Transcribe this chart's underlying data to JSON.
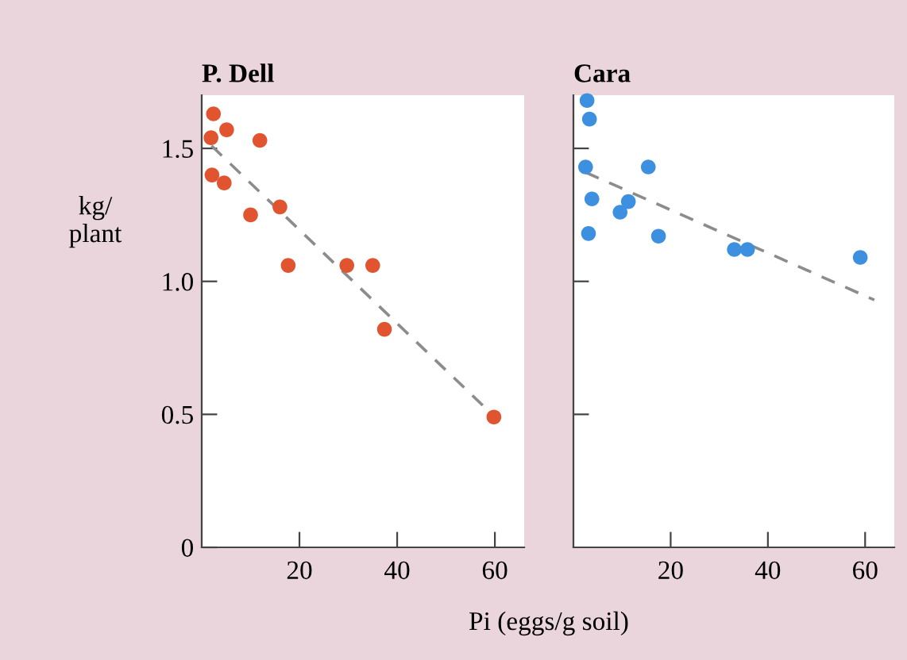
{
  "chart_data": [
    {
      "type": "scatter",
      "title": "P. Dell",
      "ylabel": "kg/\nplant",
      "xlabel": "Pi (eggs/g soil)",
      "xlim": [
        0,
        66
      ],
      "ylim": [
        0,
        1.7
      ],
      "xticks": [
        20,
        40,
        60
      ],
      "yticks": [
        0,
        {
          "value": 0.5,
          "label": "0.5"
        },
        {
          "value": 1.0,
          "label": "1.0"
        },
        {
          "value": 1.5,
          "label": "1.5"
        }
      ],
      "grid": false,
      "series": [
        {
          "marker": "circle",
          "color": "#e0552f",
          "x": [
            2.4,
            1.9,
            5.1,
            11.9,
            2.1,
            4.6,
            10,
            16,
            17.7,
            29.7,
            35,
            37.4,
            59.8
          ],
          "values": [
            1.63,
            1.54,
            1.57,
            1.53,
            1.4,
            1.37,
            1.25,
            1.28,
            1.06,
            1.06,
            1.06,
            0.82,
            0.49
          ]
        },
        {
          "type": "line",
          "line_style": "dashed",
          "color": "#8c8c8c",
          "x": [
            2,
            60
          ],
          "values": [
            1.51,
            0.49
          ]
        }
      ]
    },
    {
      "type": "scatter",
      "title": "Cara",
      "xlim": [
        0,
        66
      ],
      "ylim": [
        0,
        1.7
      ],
      "xticks": [
        20,
        40,
        60
      ],
      "yticks": [
        {
          "value": 0.5,
          "label": null
        },
        {
          "value": 1.0,
          "label": null
        },
        {
          "value": 1.5,
          "label": null
        }
      ],
      "tick_labels": "x",
      "grid": false,
      "series": [
        {
          "marker": "circle",
          "color": "#3d8fe0",
          "x": [
            2.8,
            3.3,
            2.5,
            15.4,
            3.8,
            11.3,
            9.6,
            3.1,
            17.5,
            33.1,
            35.8,
            59
          ],
          "values": [
            1.68,
            1.61,
            1.43,
            1.43,
            1.31,
            1.3,
            1.26,
            1.18,
            1.17,
            1.12,
            1.12,
            1.09
          ]
        },
        {
          "type": "line",
          "line_style": "dashed",
          "color": "#8c8c8c",
          "x": [
            2.5,
            61.9
          ],
          "values": [
            1.41,
            0.93
          ]
        }
      ]
    }
  ]
}
